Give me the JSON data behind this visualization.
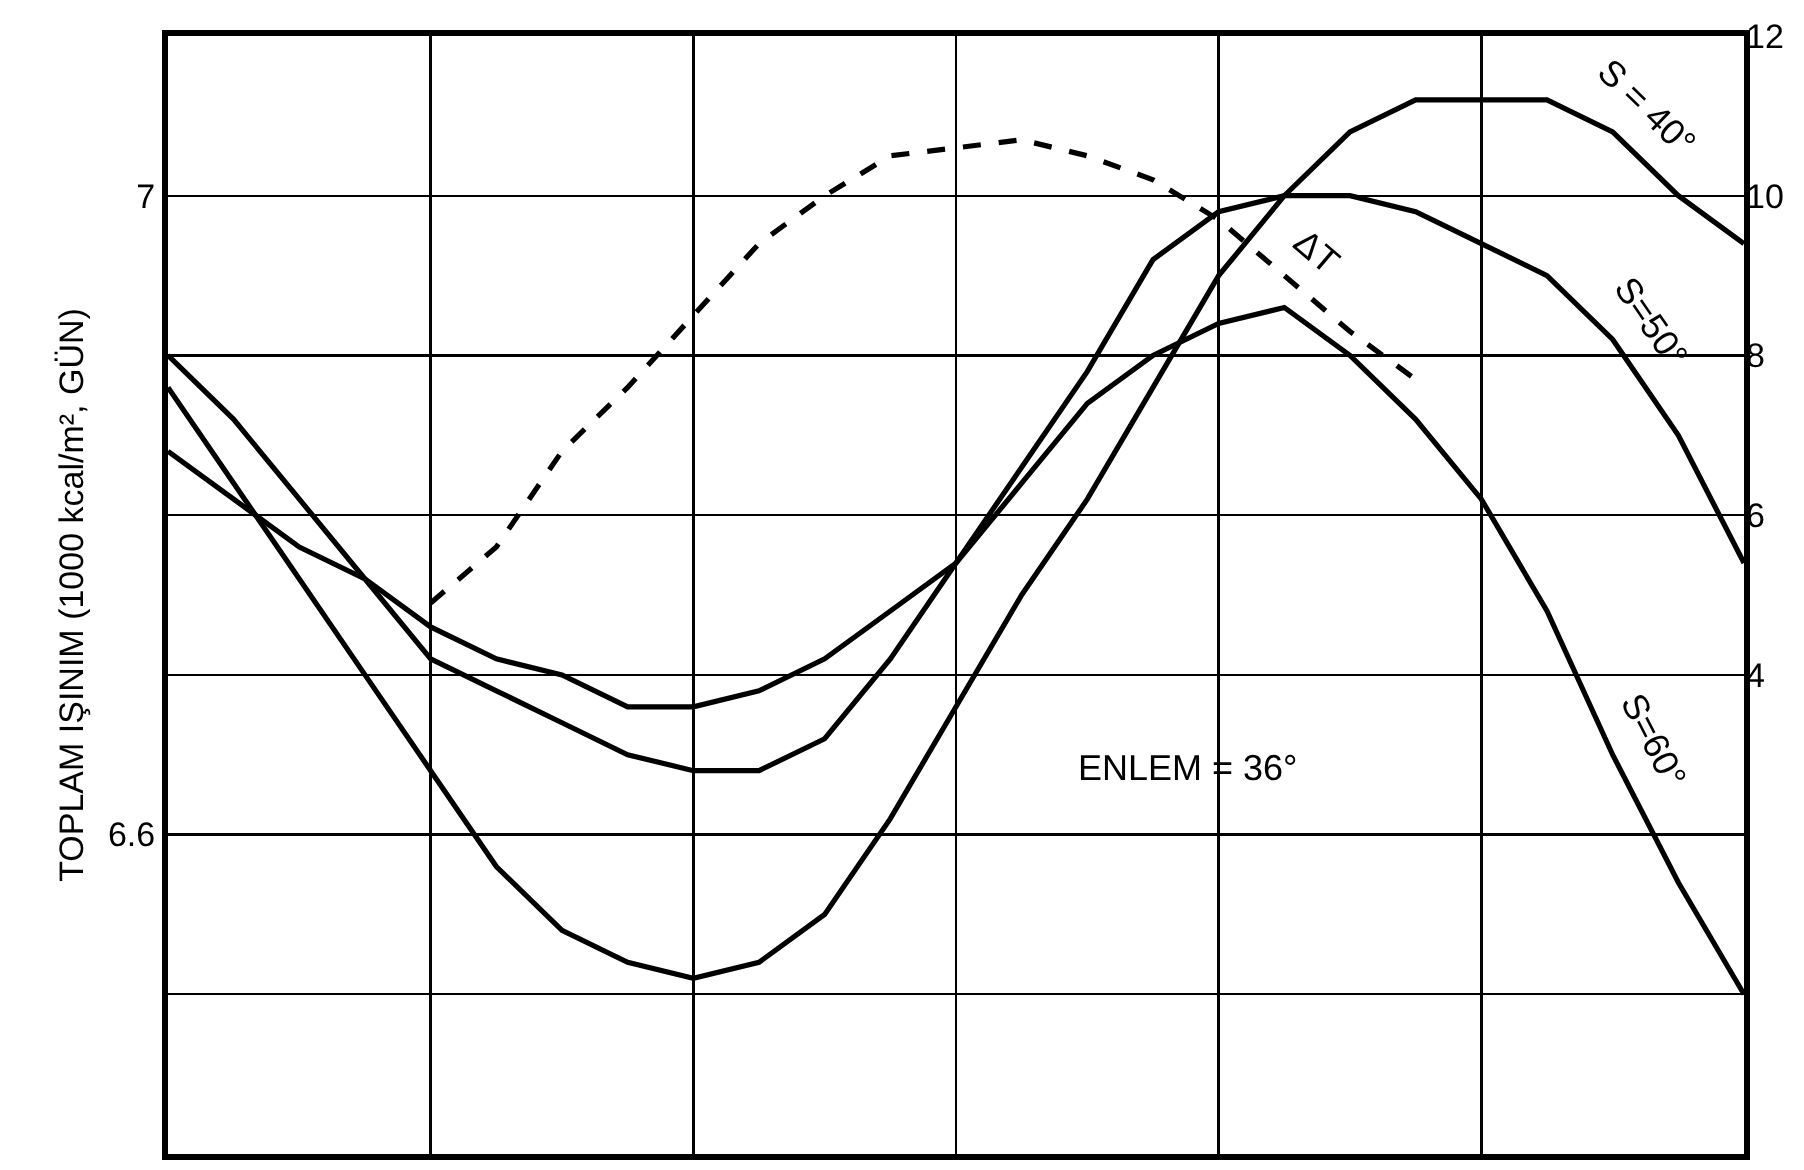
{
  "chart_data": {
    "type": "line",
    "ylabel": "TOPLAM IŞINIM (1000 kcal/m², GÜN)",
    "categories": [
      null,
      null,
      null,
      null,
      null,
      null,
      null,
      null,
      null,
      null,
      null,
      null,
      null,
      null,
      null,
      null,
      null,
      null,
      null,
      null,
      null,
      null,
      null,
      null,
      null
    ],
    "ylim": [
      6.4,
      7.1
    ],
    "yticks": [
      {
        "value": 6.4,
        "label": null
      },
      {
        "value": 6.5,
        "label": null
      },
      {
        "value": 6.6,
        "label": "6.6"
      },
      {
        "value": 6.7,
        "label": null
      },
      {
        "value": 6.8,
        "label": null
      },
      {
        "value": 6.9,
        "label": null
      },
      7,
      {
        "value": 7.1,
        "label": null
      }
    ],
    "y2lim": [
      -2,
      12
    ],
    "y2ticks": [
      4,
      6,
      8,
      10,
      12
    ],
    "grid": true,
    "legend": false,
    "marker": "none",
    "series": [
      {
        "name": "S = 40°",
        "color": "#000000",
        "line_style": "solid",
        "values": [
          6.88,
          6.82,
          6.76,
          6.7,
          6.64,
          6.58,
          6.54,
          6.52,
          6.51,
          6.52,
          6.55,
          6.61,
          6.68,
          6.75,
          6.81,
          6.88,
          6.95,
          7.0,
          7.04,
          7.06,
          7.06,
          7.06,
          7.04,
          7.0,
          6.97
        ]
      },
      {
        "name": "S=50°",
        "color": "#000000",
        "line_style": "solid",
        "values": [
          6.9,
          6.86,
          6.81,
          6.76,
          6.71,
          6.69,
          6.67,
          6.65,
          6.64,
          6.64,
          6.66,
          6.71,
          6.77,
          6.83,
          6.89,
          6.96,
          6.99,
          7.0,
          7.0,
          6.99,
          6.97,
          6.95,
          6.91,
          6.85,
          6.77
        ]
      },
      {
        "name": "S=60°",
        "color": "#000000",
        "line_style": "solid",
        "values": [
          6.84,
          6.81,
          6.78,
          6.76,
          6.73,
          6.71,
          6.7,
          6.68,
          6.68,
          6.69,
          6.71,
          6.74,
          6.77,
          6.82,
          6.87,
          6.9,
          6.92,
          6.93,
          6.9,
          6.86,
          6.81,
          6.74,
          6.65,
          6.57,
          6.5
        ]
      },
      {
        "name": "ΔT",
        "color": "#000000",
        "line_style": "dashed",
        "axis": "y2",
        "values": [
          null,
          null,
          null,
          null,
          4.9,
          5.6,
          6.8,
          7.6,
          8.5,
          9.4,
          10.0,
          10.5,
          10.6,
          10.7,
          10.5,
          10.2,
          9.7,
          9.0,
          8.3,
          7.7,
          null,
          null,
          null,
          null,
          null
        ]
      }
    ],
    "annotations": [
      "ENLEM = 36°"
    ]
  }
}
